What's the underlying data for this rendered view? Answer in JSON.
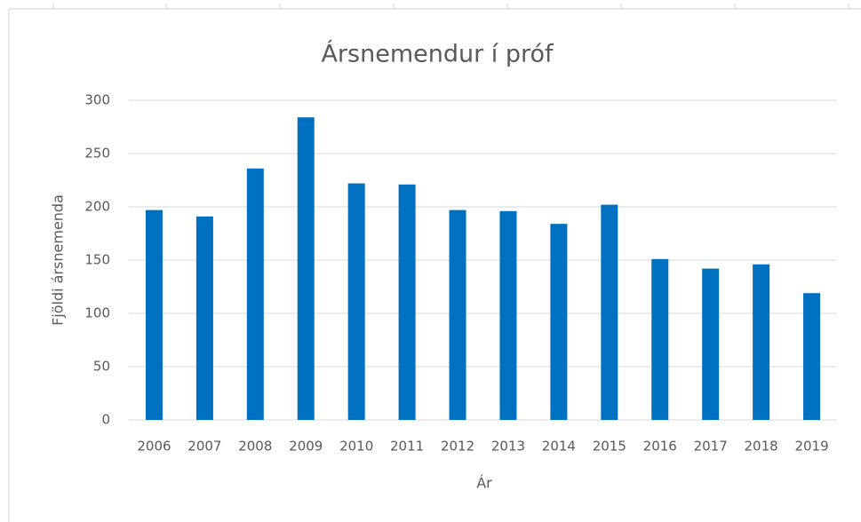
{
  "chart_data": {
    "type": "bar",
    "title": "Ársnemendur í próf",
    "x_label": "Ár",
    "y_label": "Fjöldi ársnemenda",
    "categories": [
      "2006",
      "2007",
      "2008",
      "2009",
      "2010",
      "2011",
      "2012",
      "2013",
      "2014",
      "2015",
      "2016",
      "2017",
      "2018",
      "2019"
    ],
    "values": [
      197,
      191,
      236,
      284,
      222,
      221,
      197,
      196,
      184,
      202,
      151,
      142,
      146,
      119
    ],
    "color": "#0070c0",
    "ylim": [
      0,
      300
    ],
    "yticks": [
      0,
      50,
      100,
      150,
      200,
      250,
      300
    ],
    "grid": true
  }
}
